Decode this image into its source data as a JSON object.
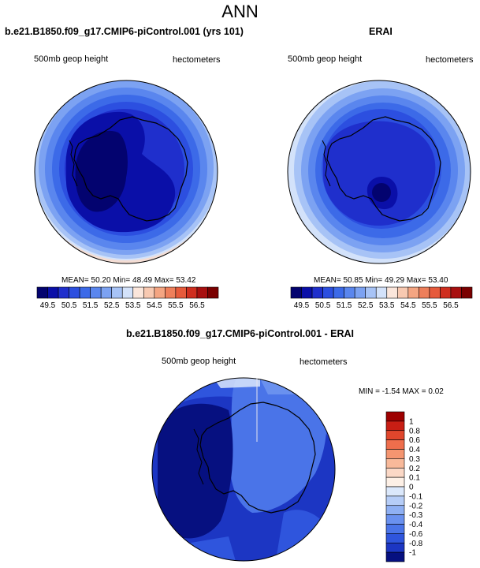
{
  "title": "ANN",
  "panels": [
    {
      "title": "b.e21.B1850.f09_g17.CMIP6-piControl.001 (yrs 101)",
      "left_label": "500mb geop height",
      "right_label": "hectometers",
      "stats": "MEAN= 50.20  Min= 48.49  Max= 53.42"
    },
    {
      "title": "ERAI",
      "left_label": "500mb geop height",
      "right_label": "hectometers",
      "stats": "MEAN= 50.85  Min= 49.29  Max= 53.40"
    },
    {
      "title": "b.e21.B1850.f09_g17.CMIP6-piControl.001 - ERAI",
      "left_label": "500mb geop height",
      "right_label": "hectometers",
      "stats": "MIN =  -1.54 MAX =   0.02"
    }
  ],
  "horizontal_colorbar": {
    "labels": [
      "49.5",
      "50.5",
      "51.5",
      "52.5",
      "53.5",
      "54.5",
      "55.5",
      "56.5"
    ],
    "colors": [
      "#03036f",
      "#0a0fa8",
      "#1f2fcc",
      "#2c4fe0",
      "#3c6ae8",
      "#5a86ee",
      "#7ca2f2",
      "#a7c3f6",
      "#d3e2fa",
      "#fbe6db",
      "#f8c9b1",
      "#f4a582",
      "#ee7f5b",
      "#e65a3b",
      "#cf2e1f",
      "#a80f0f",
      "#7a0000"
    ]
  },
  "vertical_colorbar": {
    "labels": [
      "1",
      "0.8",
      "0.6",
      "0.4",
      "0.3",
      "0.2",
      "0.1",
      "0",
      "-0.1",
      "-0.2",
      "-0.3",
      "-0.4",
      "-0.6",
      "-0.8",
      "-1"
    ],
    "colors": [
      "#9e0000",
      "#c81e14",
      "#e0462c",
      "#ee6e4c",
      "#f49570",
      "#f8b99a",
      "#fbd8c6",
      "#fdf0e6",
      "#dbe8fb",
      "#b6cdf7",
      "#8fb0f3",
      "#6a91ef",
      "#4a74e8",
      "#2f55dd",
      "#1c36c3",
      "#061080"
    ]
  }
}
